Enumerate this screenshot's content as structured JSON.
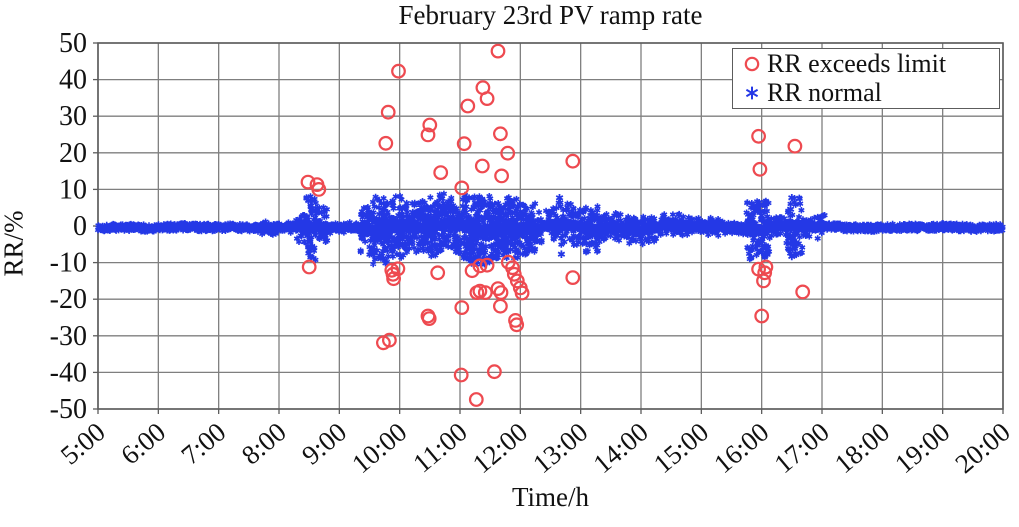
{
  "chart_data": {
    "type": "scatter",
    "title": "February 23rd PV ramp rate",
    "xlabel": "Time/h",
    "ylabel": "RR/%",
    "xlim_hours": [
      5,
      20
    ],
    "ylim": [
      -50,
      50
    ],
    "grid": true,
    "x_tick_hours": [
      5,
      6,
      7,
      8,
      9,
      10,
      11,
      12,
      13,
      14,
      15,
      16,
      17,
      18,
      19,
      20
    ],
    "x_tick_labels": [
      "5:00",
      "6:00",
      "7:00",
      "8:00",
      "9:00",
      "10:00",
      "11:00",
      "12:00",
      "13:00",
      "14:00",
      "15:00",
      "16:00",
      "17:00",
      "18:00",
      "19:00",
      "20:00"
    ],
    "y_ticks": [
      50,
      40,
      30,
      20,
      10,
      0,
      -10,
      -20,
      -30,
      -40,
      -50
    ],
    "legend": {
      "position": "top-right",
      "items": [
        {
          "label": "RR exceeds limit",
          "marker": "circle",
          "color": "#ee4a50"
        },
        {
          "label": "RR normal",
          "marker": "asterisk",
          "color": "#2438e6"
        }
      ]
    },
    "series": [
      {
        "name": "RR exceeds limit",
        "marker": "circle",
        "color": "#ee4a50",
        "points_time_h_vs_rr_pct": [
          [
            8.48,
            12.0
          ],
          [
            8.63,
            11.3
          ],
          [
            8.66,
            10.0
          ],
          [
            9.77,
            22.6
          ],
          [
            9.81,
            31.1
          ],
          [
            9.98,
            42.3
          ],
          [
            10.47,
            24.9
          ],
          [
            10.5,
            27.6
          ],
          [
            10.68,
            14.6
          ],
          [
            11.03,
            10.4
          ],
          [
            11.07,
            22.5
          ],
          [
            11.13,
            32.8
          ],
          [
            11.37,
            16.4
          ],
          [
            11.38,
            37.8
          ],
          [
            11.45,
            34.8
          ],
          [
            11.63,
            47.8
          ],
          [
            11.67,
            25.2
          ],
          [
            11.69,
            13.7
          ],
          [
            11.79,
            19.9
          ],
          [
            12.87,
            17.7
          ],
          [
            15.95,
            24.5
          ],
          [
            15.97,
            15.5
          ],
          [
            16.55,
            21.8
          ],
          [
            8.5,
            -11.2
          ],
          [
            9.73,
            -31.9
          ],
          [
            9.83,
            -31.2
          ],
          [
            9.87,
            -12.1
          ],
          [
            9.89,
            -13.2
          ],
          [
            9.9,
            -14.4
          ],
          [
            9.97,
            -11.7
          ],
          [
            10.47,
            -24.6
          ],
          [
            10.49,
            -25.3
          ],
          [
            10.63,
            -12.8
          ],
          [
            11.02,
            -40.7
          ],
          [
            11.03,
            -22.3
          ],
          [
            11.2,
            -12.2
          ],
          [
            11.27,
            -47.4
          ],
          [
            11.28,
            -18.2
          ],
          [
            11.33,
            -10.9
          ],
          [
            11.33,
            -17.8
          ],
          [
            11.42,
            -18.2
          ],
          [
            11.45,
            -10.7
          ],
          [
            11.57,
            -39.8
          ],
          [
            11.63,
            -17.1
          ],
          [
            11.67,
            -21.9
          ],
          [
            11.68,
            -18.2
          ],
          [
            11.8,
            -9.9
          ],
          [
            11.87,
            -11.4
          ],
          [
            11.9,
            -13.2
          ],
          [
            11.92,
            -25.8
          ],
          [
            11.94,
            -27.0
          ],
          [
            11.95,
            -15.0
          ],
          [
            12.0,
            -16.9
          ],
          [
            12.03,
            -18.3
          ],
          [
            12.87,
            -14.1
          ],
          [
            15.95,
            -11.8
          ],
          [
            16.0,
            -24.6
          ],
          [
            16.03,
            -15.0
          ],
          [
            16.05,
            -12.8
          ],
          [
            16.07,
            -11.2
          ],
          [
            16.68,
            -18.0
          ]
        ]
      },
      {
        "name": "RR normal",
        "marker": "asterisk",
        "color": "#2438e6",
        "band": {
          "description": "dense band of normal ramp-rate samples around 0%",
          "center": -0.4,
          "core_halfwidth": 1.0,
          "step_hours": 0.006,
          "spread_segments_t0_t1_amp_density": [
            [
              5.0,
              7.7,
              1.3,
              0
            ],
            [
              7.7,
              8.3,
              2.0,
              0.15
            ],
            [
              8.3,
              8.45,
              4.5,
              0.5
            ],
            [
              8.45,
              8.62,
              9.3,
              1.3
            ],
            [
              8.62,
              8.8,
              5.5,
              0.7
            ],
            [
              8.8,
              9.35,
              1.7,
              0.1
            ],
            [
              9.35,
              9.55,
              6.5,
              0.9
            ],
            [
              9.55,
              9.8,
              9.5,
              1.4
            ],
            [
              9.8,
              10.05,
              8.5,
              1.2
            ],
            [
              10.05,
              10.35,
              7.0,
              1.0
            ],
            [
              10.35,
              10.75,
              8.5,
              1.3
            ],
            [
              10.75,
              11.05,
              7.5,
              1.2
            ],
            [
              11.05,
              11.5,
              9.5,
              1.5
            ],
            [
              11.5,
              11.95,
              8.5,
              1.4
            ],
            [
              11.95,
              12.25,
              7.0,
              1.1
            ],
            [
              12.25,
              12.6,
              4.5,
              0.5
            ],
            [
              12.6,
              13.0,
              6.0,
              0.7
            ],
            [
              13.0,
              13.3,
              6.5,
              0.8
            ],
            [
              13.3,
              13.8,
              4.0,
              0.6
            ],
            [
              13.8,
              14.25,
              4.0,
              0.6
            ],
            [
              14.25,
              14.75,
              3.0,
              0.45
            ],
            [
              14.75,
              15.35,
              2.6,
              0.4
            ],
            [
              15.35,
              15.75,
              1.8,
              0.15
            ],
            [
              15.75,
              16.12,
              8.0,
              1.0
            ],
            [
              16.12,
              16.42,
              3.2,
              0.4
            ],
            [
              16.42,
              16.68,
              9.0,
              0.9
            ],
            [
              16.68,
              17.05,
              3.2,
              0.4
            ],
            [
              17.05,
              20.0,
              1.3,
              0
            ]
          ]
        },
        "outlier_points_time_h_vs_rr_pct": [
          [
            12.65,
            7.7
          ],
          [
            12.68,
            -7.7
          ],
          [
            16.48,
            4.6
          ],
          [
            16.5,
            7.7
          ],
          [
            16.5,
            -8.3
          ],
          [
            16.52,
            -3.2
          ],
          [
            16.55,
            -5.5
          ]
        ]
      }
    ]
  },
  "colors": {
    "grid": "#7f7f7f",
    "axis_border": "#5c5c5c",
    "tick_text": "#111111",
    "background": "#ffffff"
  }
}
